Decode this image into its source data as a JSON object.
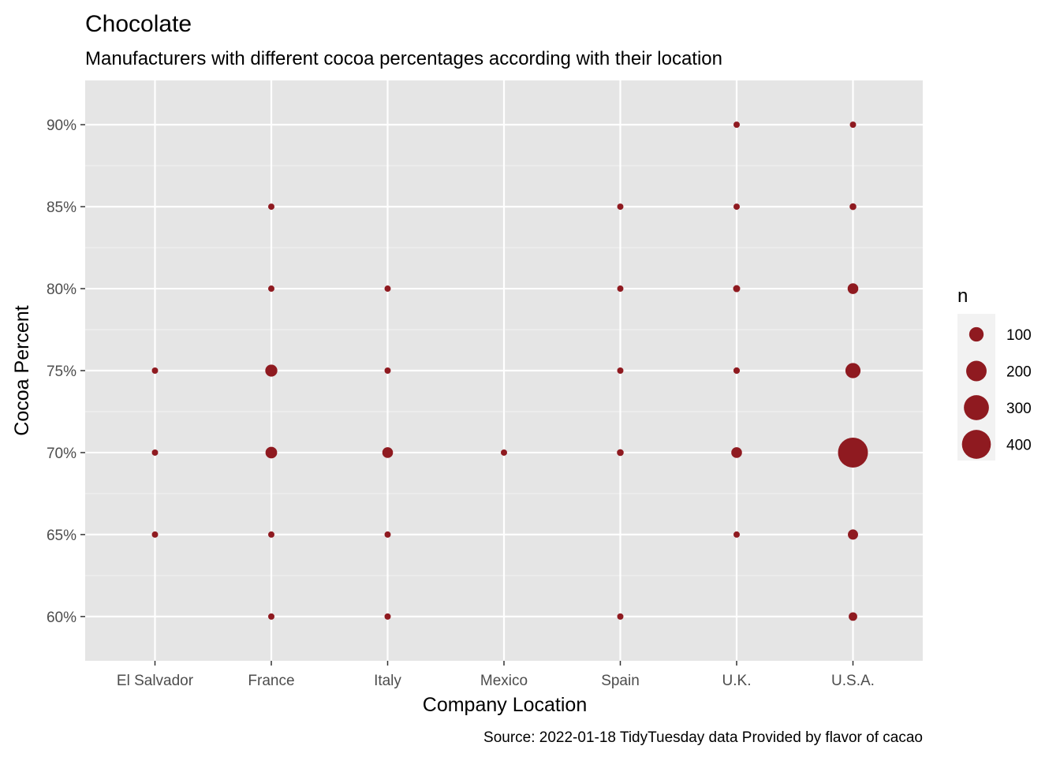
{
  "chart_data": {
    "type": "scatter",
    "title": "Chocolate",
    "subtitle": "Manufacturers with different cocoa percentages according with their location",
    "xlabel": "Company Location",
    "ylabel": "Cocoa Percent",
    "caption": "Source: 2022-01-18 TidyTuesday data Provided by flavor of cacao",
    "categories": [
      "El Salvador",
      "France",
      "Italy",
      "Mexico",
      "Spain",
      "U.K.",
      "U.S.A."
    ],
    "y_ticks": [
      60,
      65,
      70,
      75,
      80,
      85,
      90
    ],
    "y_tick_labels": [
      "60%",
      "65%",
      "70%",
      "75%",
      "80%",
      "85%",
      "90%"
    ],
    "ylim": [
      57.3,
      92.7
    ],
    "grid": true,
    "point_color": "#8f1a20",
    "panel_background": "#e5e5e5",
    "size_legend": {
      "title": "n",
      "values": [
        100,
        200,
        300,
        400
      ],
      "labels": [
        "100",
        "200",
        "300",
        "400"
      ],
      "placement": "right"
    },
    "points": [
      {
        "x": "El Salvador",
        "y": 75,
        "n": 3
      },
      {
        "x": "El Salvador",
        "y": 70,
        "n": 3
      },
      {
        "x": "El Salvador",
        "y": 65,
        "n": 3
      },
      {
        "x": "France",
        "y": 85,
        "n": 12
      },
      {
        "x": "France",
        "y": 80,
        "n": 12
      },
      {
        "x": "France",
        "y": 75,
        "n": 70
      },
      {
        "x": "France",
        "y": 70,
        "n": 65
      },
      {
        "x": "France",
        "y": 65,
        "n": 15
      },
      {
        "x": "France",
        "y": 60,
        "n": 12
      },
      {
        "x": "Italy",
        "y": 80,
        "n": 3
      },
      {
        "x": "Italy",
        "y": 75,
        "n": 14
      },
      {
        "x": "Italy",
        "y": 70,
        "n": 55
      },
      {
        "x": "Italy",
        "y": 65,
        "n": 10
      },
      {
        "x": "Italy",
        "y": 60,
        "n": 7
      },
      {
        "x": "Mexico",
        "y": 70,
        "n": 18
      },
      {
        "x": "Spain",
        "y": 85,
        "n": 8
      },
      {
        "x": "Spain",
        "y": 80,
        "n": 3
      },
      {
        "x": "Spain",
        "y": 75,
        "n": 15
      },
      {
        "x": "Spain",
        "y": 70,
        "n": 22
      },
      {
        "x": "Spain",
        "y": 60,
        "n": 3
      },
      {
        "x": "U.K.",
        "y": 90,
        "n": 3
      },
      {
        "x": "U.K.",
        "y": 85,
        "n": 8
      },
      {
        "x": "U.K.",
        "y": 80,
        "n": 24
      },
      {
        "x": "U.K.",
        "y": 75,
        "n": 20
      },
      {
        "x": "U.K.",
        "y": 70,
        "n": 55
      },
      {
        "x": "U.K.",
        "y": 65,
        "n": 15
      },
      {
        "x": "U.S.A.",
        "y": 90,
        "n": 14
      },
      {
        "x": "U.S.A.",
        "y": 85,
        "n": 22
      },
      {
        "x": "U.S.A.",
        "y": 80,
        "n": 55
      },
      {
        "x": "U.S.A.",
        "y": 75,
        "n": 110
      },
      {
        "x": "U.S.A.",
        "y": 70,
        "n": 430
      },
      {
        "x": "U.S.A.",
        "y": 65,
        "n": 50
      },
      {
        "x": "U.S.A.",
        "y": 60,
        "n": 35
      }
    ]
  }
}
